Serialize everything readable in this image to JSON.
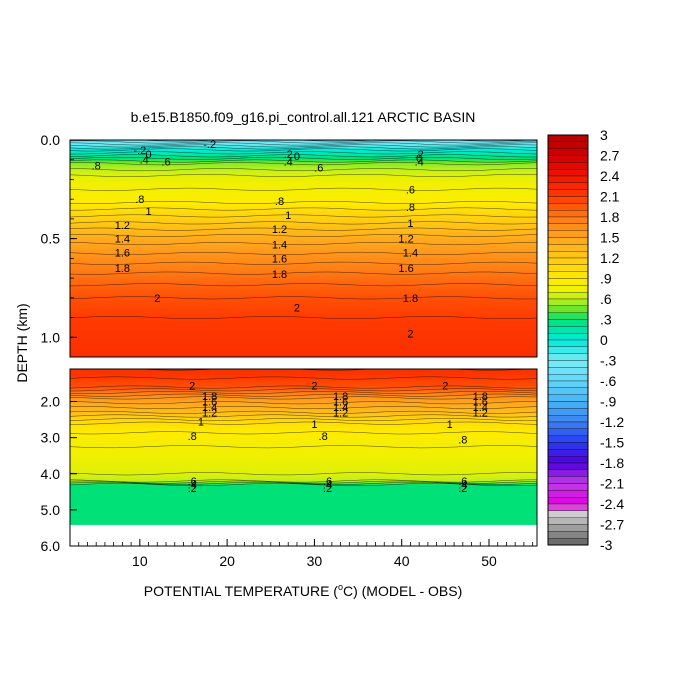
{
  "chart_data": {
    "type": "heatmap",
    "title": "b.e15.B1850.f09_g16.pi_control.all.121 ARCTIC BASIN",
    "xlabel_prefix": "POTENTIAL TEMPERATURE (",
    "xlabel_sup": "o",
    "xlabel_suffix": "C) (MODEL - OBS)",
    "ylabel": "DEPTH (km)",
    "xlim": [
      2,
      55.5
    ],
    "x_ticks": [
      10,
      20,
      30,
      40,
      50
    ],
    "x_tick_labels": [
      "10",
      "20",
      "30",
      "40",
      "50"
    ],
    "upper_panel": {
      "ylim": [
        0.0,
        1.1
      ],
      "y_ticks": [
        0.0,
        0.5,
        1.0
      ],
      "y_tick_labels": [
        "0.0",
        "0.5",
        "1.0"
      ]
    },
    "lower_panel": {
      "ylim": [
        1.1,
        6.0
      ],
      "y_ticks": [
        2.0,
        3.0,
        4.0,
        5.0,
        6.0
      ],
      "y_tick_labels": [
        "2.0",
        "3.0",
        "4.0",
        "5.0",
        "6.0"
      ]
    },
    "colorbar": {
      "min": -3,
      "max": 3,
      "tick_values": [
        3,
        2.7,
        2.4,
        2.1,
        1.8,
        1.5,
        1.2,
        0.9,
        0.6,
        0.3,
        0,
        -0.3,
        -0.6,
        -0.9,
        -1.2,
        -1.5,
        -1.8,
        -2.1,
        -2.4,
        -2.7,
        -3
      ],
      "tick_labels": [
        "3",
        "2.7",
        "2.4",
        "2.1",
        "1.8",
        "1.5",
        "1.2",
        ".9",
        ".6",
        ".3",
        "0",
        "-.3",
        "-.6",
        "-.9",
        "-1.2",
        "-1.5",
        "-1.8",
        "-2.1",
        "-2.4",
        "-2.7",
        "-3"
      ]
    },
    "upper_profile": [
      {
        "depth": 0.0,
        "value": -0.5
      },
      {
        "depth": 0.05,
        "value": 0.0
      },
      {
        "depth": 0.08,
        "value": 0.2
      },
      {
        "depth": 0.12,
        "value": 0.5
      },
      {
        "depth": 0.18,
        "value": 0.7
      },
      {
        "depth": 0.25,
        "value": 0.8
      },
      {
        "depth": 0.3,
        "value": 0.85
      },
      {
        "depth": 0.35,
        "value": 1.0
      },
      {
        "depth": 0.42,
        "value": 1.2
      },
      {
        "depth": 0.5,
        "value": 1.45
      },
      {
        "depth": 0.6,
        "value": 1.65
      },
      {
        "depth": 0.7,
        "value": 1.85
      },
      {
        "depth": 0.8,
        "value": 2.0
      },
      {
        "depth": 0.9,
        "value": 2.1
      },
      {
        "depth": 1.1,
        "value": 2.2
      }
    ],
    "lower_profile": [
      {
        "depth": 1.1,
        "value": 2.2
      },
      {
        "depth": 1.6,
        "value": 2.0
      },
      {
        "depth": 1.9,
        "value": 1.6
      },
      {
        "depth": 2.3,
        "value": 1.3
      },
      {
        "depth": 2.6,
        "value": 1.0
      },
      {
        "depth": 3.0,
        "value": 0.85
      },
      {
        "depth": 3.5,
        "value": 0.75
      },
      {
        "depth": 4.0,
        "value": 0.7
      },
      {
        "depth": 4.2,
        "value": 0.6
      },
      {
        "depth": 4.3,
        "value": 0.3
      },
      {
        "depth": 5.4,
        "value": 0.3
      }
    ],
    "data_end_depth": 5.4,
    "contour_labels": [
      {
        "text": "-.2",
        "x": 18,
        "depth": 0.02
      },
      {
        "text": "-.2",
        "x": 10,
        "depth": 0.05
      },
      {
        "text": "0",
        "x": 11,
        "depth": 0.07
      },
      {
        "text": ".4",
        "x": 10.5,
        "depth": 0.1
      },
      {
        "text": ".6",
        "x": 13,
        "depth": 0.11
      },
      {
        "text": ".8",
        "x": 5,
        "depth": 0.13
      },
      {
        "text": ".2",
        "x": 27,
        "depth": 0.07
      },
      {
        "text": "0",
        "x": 28,
        "depth": 0.08
      },
      {
        "text": ".4",
        "x": 27,
        "depth": 0.11
      },
      {
        "text": ".6",
        "x": 30.5,
        "depth": 0.14
      },
      {
        "text": ".2",
        "x": 42,
        "depth": 0.07
      },
      {
        "text": "0",
        "x": 42,
        "depth": 0.09
      },
      {
        "text": ".4",
        "x": 42,
        "depth": 0.11
      },
      {
        "text": ".6",
        "x": 41,
        "depth": 0.25
      },
      {
        "text": ".8",
        "x": 10,
        "depth": 0.3
      },
      {
        "text": ".8",
        "x": 26,
        "depth": 0.31
      },
      {
        "text": ".8",
        "x": 41,
        "depth": 0.34
      },
      {
        "text": "1",
        "x": 11,
        "depth": 0.36
      },
      {
        "text": "1",
        "x": 27,
        "depth": 0.38
      },
      {
        "text": "1",
        "x": 41,
        "depth": 0.42
      },
      {
        "text": "1.2",
        "x": 8,
        "depth": 0.43
      },
      {
        "text": "1.2",
        "x": 26,
        "depth": 0.45
      },
      {
        "text": "1.2",
        "x": 40.5,
        "depth": 0.5
      },
      {
        "text": "1.4",
        "x": 8,
        "depth": 0.5
      },
      {
        "text": "1.4",
        "x": 26,
        "depth": 0.53
      },
      {
        "text": "1.4",
        "x": 41,
        "depth": 0.57
      },
      {
        "text": "1.6",
        "x": 8,
        "depth": 0.57
      },
      {
        "text": "1.6",
        "x": 26,
        "depth": 0.6
      },
      {
        "text": "1.6",
        "x": 40.5,
        "depth": 0.65
      },
      {
        "text": "1.8",
        "x": 8,
        "depth": 0.65
      },
      {
        "text": "1.8",
        "x": 26,
        "depth": 0.68
      },
      {
        "text": "1.8",
        "x": 41,
        "depth": 0.8
      },
      {
        "text": "2",
        "x": 12,
        "depth": 0.8
      },
      {
        "text": "2",
        "x": 28,
        "depth": 0.85
      },
      {
        "text": "2",
        "x": 41,
        "depth": 0.98
      },
      {
        "text": "2",
        "x": 16,
        "depth": 1.55
      },
      {
        "text": "2",
        "x": 30,
        "depth": 1.55
      },
      {
        "text": "2",
        "x": 45,
        "depth": 1.55
      },
      {
        "text": "1.8",
        "x": 18,
        "depth": 1.85
      },
      {
        "text": "1.8",
        "x": 33,
        "depth": 1.85
      },
      {
        "text": "1.8",
        "x": 49,
        "depth": 1.85
      },
      {
        "text": "1.6",
        "x": 18,
        "depth": 2.0
      },
      {
        "text": "1.6",
        "x": 33,
        "depth": 2.0
      },
      {
        "text": "1.6",
        "x": 49,
        "depth": 2.0
      },
      {
        "text": "1.4",
        "x": 18,
        "depth": 2.15
      },
      {
        "text": "1.4",
        "x": 33,
        "depth": 2.15
      },
      {
        "text": "1.4",
        "x": 49,
        "depth": 2.15
      },
      {
        "text": "1.2",
        "x": 18,
        "depth": 2.3
      },
      {
        "text": "1.2",
        "x": 33,
        "depth": 2.3
      },
      {
        "text": "1.2",
        "x": 49,
        "depth": 2.3
      },
      {
        "text": "1",
        "x": 17,
        "depth": 2.55
      },
      {
        "text": "1",
        "x": 30,
        "depth": 2.62
      },
      {
        "text": "1",
        "x": 45.5,
        "depth": 2.62
      },
      {
        "text": ".8",
        "x": 16,
        "depth": 2.95
      },
      {
        "text": ".8",
        "x": 31,
        "depth": 2.95
      },
      {
        "text": ".8",
        "x": 47,
        "depth": 3.05
      },
      {
        "text": ".6",
        "x": 16,
        "depth": 4.2
      },
      {
        "text": ".4",
        "x": 16,
        "depth": 4.3
      },
      {
        "text": ".2",
        "x": 16,
        "depth": 4.4
      },
      {
        "text": ".6",
        "x": 31.5,
        "depth": 4.2
      },
      {
        "text": ".4",
        "x": 31.5,
        "depth": 4.3
      },
      {
        "text": ".2",
        "x": 31.5,
        "depth": 4.4
      },
      {
        "text": ".6",
        "x": 47,
        "depth": 4.2
      },
      {
        "text": ".4",
        "x": 47,
        "depth": 4.3
      },
      {
        "text": ".2",
        "x": 47,
        "depth": 4.4
      }
    ]
  }
}
